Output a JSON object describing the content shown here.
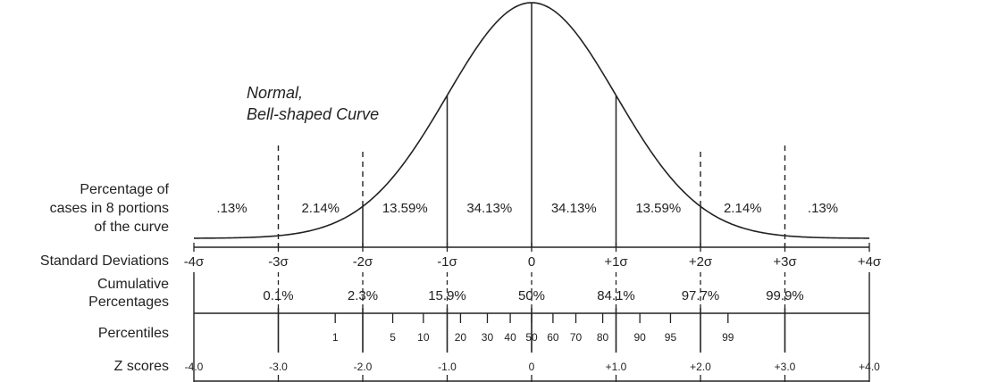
{
  "curve_label": [
    "Normal,",
    "Bell-shaped Curve"
  ],
  "row_labels": {
    "percentage": [
      "Percentage of",
      "cases in 8 portions",
      "of the curve"
    ],
    "std_dev": "Standard Deviations",
    "cumulative": [
      "Cumulative",
      "Percentages"
    ],
    "percentiles": "Percentiles",
    "z_scores": "Z scores"
  },
  "portion_percentages": [
    ".13%",
    "2.14%",
    "13.59%",
    "34.13%",
    "34.13%",
    "13.59%",
    "2.14%",
    ".13%"
  ],
  "std_dev_ticks": [
    "-4σ",
    "-3σ",
    "-2σ",
    "-1σ",
    "0",
    "+1σ",
    "+2σ",
    "+3σ",
    "+4σ"
  ],
  "cumulative_percentages": [
    "0.1%",
    "2.3%",
    "15.9%",
    "50%",
    "84.1%",
    "97.7%",
    "99.9%"
  ],
  "percentiles": [
    "1",
    "5",
    "10",
    "20",
    "30",
    "40",
    "50",
    "60",
    "70",
    "80",
    "90",
    "95",
    "99"
  ],
  "z_scores": [
    "-4.0",
    "-3.0",
    "-2.0",
    "-1.0",
    "0",
    "+1.0",
    "+2.0",
    "+3.0",
    "+4.0"
  ],
  "colors": {
    "line": "#222222",
    "text": "#222222"
  }
}
